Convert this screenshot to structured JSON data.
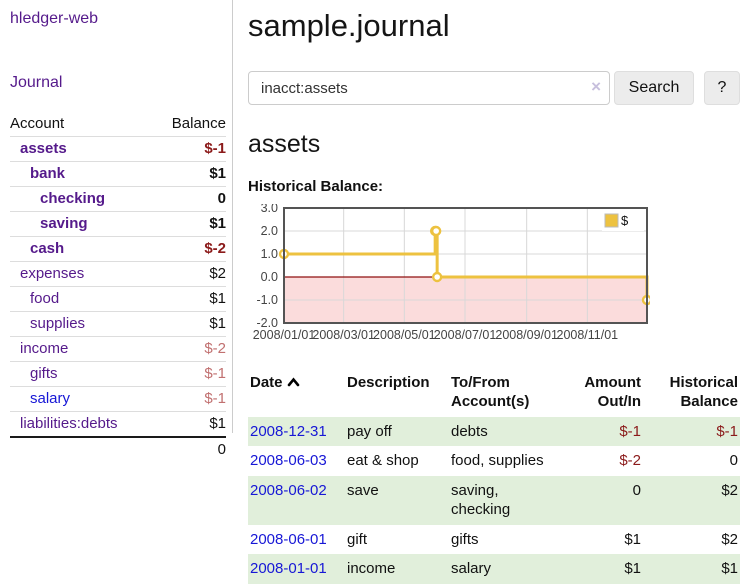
{
  "app": {
    "title": "hledger-web"
  },
  "colors": {
    "link_purple": "#551a8b",
    "link_blue": "#1717d6",
    "negative_strong": "#8b1a1a",
    "negative_faded": "#c17070",
    "row_stripe_green": "#e1efdb",
    "chart_series_gold": "#edc240",
    "chart_negative_region_pink": "#fbdcdc",
    "chart_zero_line_red": "#8f1010",
    "chart_border_gray": "#545454",
    "chart_grid_gray": "#d8d8d8"
  },
  "sidebar": {
    "journal_link": "Journal",
    "account_header": "Account",
    "balance_header": "Balance",
    "accounts": [
      {
        "name": "assets",
        "depth": 1,
        "balance": "$-1",
        "bold": true,
        "balance_style": "neg-strong",
        "link_style": "purple"
      },
      {
        "name": "bank",
        "depth": 2,
        "balance": "$1",
        "bold": true,
        "balance_style": "pos",
        "link_style": "purple"
      },
      {
        "name": "checking",
        "depth": 3,
        "balance": "0",
        "bold": true,
        "balance_style": "pos",
        "link_style": "purple"
      },
      {
        "name": "saving",
        "depth": 3,
        "balance": "$1",
        "bold": true,
        "balance_style": "pos",
        "link_style": "purple"
      },
      {
        "name": "cash",
        "depth": 2,
        "balance": "$-2",
        "bold": true,
        "balance_style": "neg-strong",
        "link_style": "purple"
      },
      {
        "name": "expenses",
        "depth": 1,
        "balance": "$2",
        "bold": false,
        "balance_style": "pos",
        "link_style": "purple"
      },
      {
        "name": "food",
        "depth": 2,
        "balance": "$1",
        "bold": false,
        "balance_style": "pos",
        "link_style": "purple"
      },
      {
        "name": "supplies",
        "depth": 2,
        "balance": "$1",
        "bold": false,
        "balance_style": "pos",
        "link_style": "purple"
      },
      {
        "name": "income",
        "depth": 1,
        "balance": "$-2",
        "bold": false,
        "balance_style": "neg-faded",
        "link_style": "purple"
      },
      {
        "name": "gifts",
        "depth": 2,
        "balance": "$-1",
        "bold": false,
        "balance_style": "neg-faded",
        "link_style": "purple"
      },
      {
        "name": "salary",
        "depth": 2,
        "balance": "$-1",
        "bold": false,
        "balance_style": "neg-faded",
        "link_style": "blue"
      },
      {
        "name": "liabilities:debts",
        "depth": 1,
        "balance": "$1",
        "bold": false,
        "balance_style": "pos",
        "link_style": "purple"
      }
    ],
    "total": "0"
  },
  "header": {
    "title": "sample.journal"
  },
  "search": {
    "value": "inacct:assets",
    "clear_icon": "×",
    "button_label": "Search",
    "help_label": "?"
  },
  "account_page": {
    "heading": "assets"
  },
  "chart_data": {
    "type": "line",
    "title": "Historical Balance:",
    "steps": true,
    "x_range": [
      "2008-01-01",
      "2008-12-31"
    ],
    "ylim": [
      -2,
      3
    ],
    "y_ticks": [
      "3.0",
      "2.0",
      "1.0",
      "0.0",
      "-1.0",
      "-2.0"
    ],
    "x_ticks": [
      {
        "label": "2008/01/01",
        "date": "2008-01-01"
      },
      {
        "label": "2008/03/01",
        "date": "2008-03-01"
      },
      {
        "label": "2008/05/01",
        "date": "2008-05-01"
      },
      {
        "label": "2008/07/01",
        "date": "2008-07-01"
      },
      {
        "label": "2008/09/01",
        "date": "2008-09-01"
      },
      {
        "label": "2008/11/01",
        "date": "2008-11-01"
      }
    ],
    "series": [
      {
        "name": "$",
        "color": "#edc240",
        "points": [
          {
            "date": "2008-01-01",
            "value": 1
          },
          {
            "date": "2008-06-01",
            "value": 2
          },
          {
            "date": "2008-06-02",
            "value": 2
          },
          {
            "date": "2008-06-03",
            "value": 0
          },
          {
            "date": "2008-12-31",
            "value": -1
          }
        ]
      }
    ],
    "legend": {
      "label": "$",
      "position": "top-right"
    },
    "grid": true
  },
  "register": {
    "columns": [
      {
        "label": "Date",
        "align": "left",
        "sorted": "asc"
      },
      {
        "label": "Description",
        "align": "left"
      },
      {
        "label": "To/From Account(s)",
        "align": "left"
      },
      {
        "label": "Amount Out/In",
        "align": "right"
      },
      {
        "label": "Historical Balance",
        "align": "right"
      }
    ],
    "rows": [
      {
        "date": "2008-12-31",
        "description": "pay off",
        "accounts": "debts",
        "amount": "$-1",
        "balance": "$-1"
      },
      {
        "date": "2008-06-03",
        "description": "eat & shop",
        "accounts": "food, supplies",
        "amount": "$-2",
        "balance": "0"
      },
      {
        "date": "2008-06-02",
        "description": "save",
        "accounts": "saving, checking",
        "amount": "0",
        "balance": "$2"
      },
      {
        "date": "2008-06-01",
        "description": "gift",
        "accounts": "gifts",
        "amount": "$1",
        "balance": "$2"
      },
      {
        "date": "2008-01-01",
        "description": "income",
        "accounts": "salary",
        "amount": "$1",
        "balance": "$1"
      }
    ]
  }
}
